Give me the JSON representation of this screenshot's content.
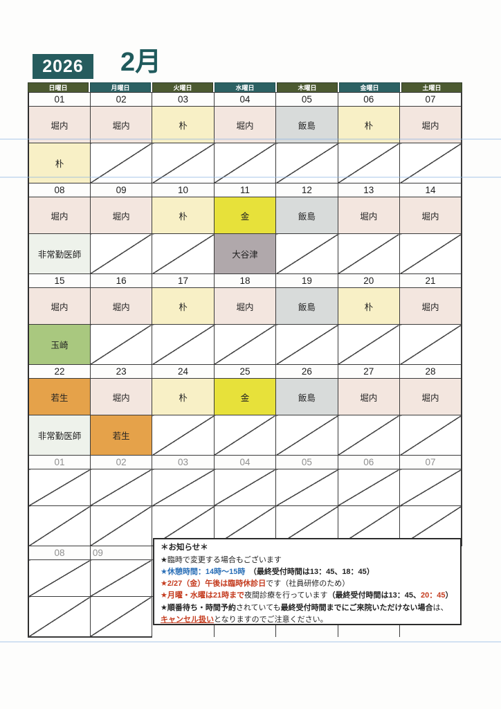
{
  "header": {
    "year": "2026",
    "month": "2月"
  },
  "weekdays": [
    "日曜日",
    "月曜日",
    "火曜日",
    "水曜日",
    "木曜日",
    "金曜日",
    "土曜日"
  ],
  "colors": {
    "year_badge_bg": "#265c5e",
    "month_text": "#1f5a5c",
    "weekday_olive": "#4c5a31",
    "weekday_teal": "#2c6163",
    "notice_red": "#c43b1e",
    "notice_blue": "#2a6fb7"
  },
  "doctor_colors": {
    "堀内": "#f3e6df",
    "朴": "#f8f0c6",
    "飯島": "#d8dbda",
    "金": "#e7e13a",
    "大谷津": "#b0a8ab",
    "非常勤医師": "#eef2eb",
    "玉崎": "#a9c87f",
    "若生": "#e5a24a"
  },
  "weeks": [
    {
      "gray": false,
      "dates": [
        "01",
        "02",
        "03",
        "04",
        "05",
        "06",
        "07"
      ],
      "row1": [
        "堀内",
        "堀内",
        "朴",
        "堀内",
        "飯島",
        "朴",
        "堀内"
      ],
      "row2": [
        "朴",
        null,
        null,
        null,
        null,
        null,
        null
      ]
    },
    {
      "gray": false,
      "dates": [
        "08",
        "09",
        "10",
        "11",
        "12",
        "13",
        "14"
      ],
      "row1": [
        "堀内",
        "堀内",
        "朴",
        "金",
        "飯島",
        "堀内",
        "堀内"
      ],
      "row2": [
        "非常勤医師",
        null,
        null,
        "大谷津",
        null,
        null,
        null
      ]
    },
    {
      "gray": false,
      "dates": [
        "15",
        "16",
        "17",
        "18",
        "19",
        "20",
        "21"
      ],
      "row1": [
        "堀内",
        "堀内",
        "朴",
        "堀内",
        "飯島",
        "朴",
        "堀内"
      ],
      "row2": [
        "玉崎",
        null,
        null,
        null,
        null,
        null,
        null
      ]
    },
    {
      "gray": false,
      "dates": [
        "22",
        "23",
        "24",
        "25",
        "26",
        "27",
        "28"
      ],
      "row1": [
        "若生",
        "堀内",
        "朴",
        "金",
        "飯島",
        "堀内",
        "堀内"
      ],
      "row2": [
        "非常勤医師",
        "若生",
        null,
        null,
        null,
        null,
        null
      ]
    },
    {
      "gray": true,
      "dates": [
        "01",
        "02",
        "03",
        "04",
        "05",
        "06",
        "07"
      ],
      "row1": [
        null,
        null,
        null,
        null,
        null,
        null,
        null
      ],
      "row2": [
        null,
        null,
        null,
        null,
        null,
        null,
        null
      ]
    },
    {
      "gray": true,
      "dates": [
        "08",
        "09",
        null,
        null,
        null,
        null,
        null
      ],
      "row1": [
        null,
        null,
        null,
        null,
        null,
        null,
        null
      ],
      "row2": [
        null,
        null,
        null,
        null,
        null,
        null,
        null
      ]
    }
  ],
  "notice": {
    "title": "＊お知らせ＊",
    "lines": [
      {
        "segments": [
          {
            "text": "★臨時で変更する場合もございます",
            "style": "plain"
          }
        ]
      },
      {
        "segments": [
          {
            "text": "★休憩時間：14時～15時",
            "style": "blue-bold"
          },
          {
            "text": "　（最終受付時間は13：45、18：45）",
            "style": "bold"
          }
        ]
      },
      {
        "segments": [
          {
            "text": "★2/27（金）午後は臨時休診日",
            "style": "red-bold"
          },
          {
            "text": "です（社員研修のため）",
            "style": "plain"
          }
        ]
      },
      {
        "segments": [
          {
            "text": "★月曜・水曜は21時まで",
            "style": "red-bold"
          },
          {
            "text": "夜間診療を行っています",
            "style": "plain"
          },
          {
            "text": "（最終受付時間は13：45、",
            "style": "bold"
          },
          {
            "text": "20：45",
            "style": "red-bold"
          },
          {
            "text": "）",
            "style": "bold"
          }
        ]
      },
      {
        "segments": [
          {
            "text": "★",
            "style": "plain"
          },
          {
            "text": "順番待ち・時間予約",
            "style": "bold"
          },
          {
            "text": "されていても",
            "style": "plain"
          },
          {
            "text": "最終受付時間までにご来院いただけない場合",
            "style": "bold"
          },
          {
            "text": "は、",
            "style": "plain"
          },
          {
            "text": "キャンセル扱い",
            "style": "red-bold-underline"
          },
          {
            "text": "となりますのでご注意ください。",
            "style": "plain"
          }
        ]
      }
    ]
  }
}
